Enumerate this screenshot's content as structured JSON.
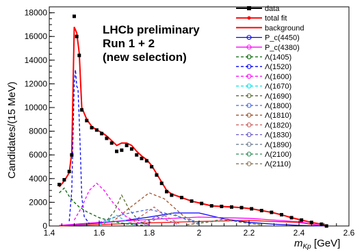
{
  "chart_data": {
    "type": "line",
    "title": "",
    "xlabel": "m_{Kp} [GeV]",
    "xlabel_main": "m",
    "xlabel_sub": "Kp",
    "xlabel_unit": "[GeV]",
    "ylabel": "Candidates/(15 MeV)",
    "xlim": [
      1.4,
      2.6
    ],
    "ylim": [
      0,
      18500
    ],
    "x_ticks": [
      1.4,
      1.6,
      1.8,
      2,
      2.2,
      2.4,
      2.6
    ],
    "x_tick_labels": [
      "1.4",
      "1.6",
      "1.8",
      "2",
      "2.2",
      "2.4",
      "2.6"
    ],
    "y_ticks": [
      0,
      2000,
      4000,
      6000,
      8000,
      10000,
      12000,
      14000,
      16000,
      18000
    ],
    "y_tick_labels": [
      "0",
      "2000",
      "4000",
      "6000",
      "8000",
      "10000",
      "12000",
      "14000",
      "16000",
      "18000"
    ],
    "annotations": [
      "LHCb preliminary",
      "Run 1 + 2",
      "(new selection)"
    ],
    "legend_position": "top-right",
    "series": [
      {
        "name": "data",
        "color": "#000000",
        "style": "data",
        "x": [
          1.44,
          1.46,
          1.48,
          1.49,
          1.5,
          1.51,
          1.52,
          1.53,
          1.55,
          1.57,
          1.59,
          1.61,
          1.63,
          1.65,
          1.67,
          1.69,
          1.71,
          1.73,
          1.75,
          1.77,
          1.79,
          1.81,
          1.83,
          1.85,
          1.87,
          1.89,
          1.93,
          1.97,
          2.01,
          2.05,
          2.09,
          2.13,
          2.17,
          2.21,
          2.25,
          2.29,
          2.33,
          2.37,
          2.41,
          2.45,
          2.49,
          2.51
        ],
        "y": [
          3500,
          3900,
          4600,
          6000,
          17700,
          16000,
          14400,
          9800,
          8900,
          8300,
          8100,
          7800,
          7400,
          7000,
          6300,
          6400,
          6800,
          6500,
          6000,
          5700,
          5500,
          5000,
          4300,
          3600,
          2900,
          2600,
          2400,
          2100,
          1900,
          1700,
          1650,
          1600,
          1550,
          1450,
          1300,
          1150,
          950,
          700,
          500,
          300,
          150,
          0
        ]
      },
      {
        "name": "total fit",
        "color": "#ff0000",
        "style": "line",
        "x": [
          1.44,
          1.46,
          1.48,
          1.49,
          1.5,
          1.51,
          1.52,
          1.53,
          1.55,
          1.57,
          1.59,
          1.61,
          1.63,
          1.65,
          1.67,
          1.69,
          1.71,
          1.73,
          1.75,
          1.77,
          1.79,
          1.81,
          1.83,
          1.85,
          1.87,
          1.89,
          1.93,
          1.97,
          2.01,
          2.05,
          2.09,
          2.13,
          2.17,
          2.21,
          2.25,
          2.29,
          2.33,
          2.37,
          2.41,
          2.45,
          2.49,
          2.51
        ],
        "y": [
          3300,
          3800,
          4500,
          6200,
          16800,
          16300,
          14600,
          10000,
          9000,
          8400,
          8100,
          7900,
          7600,
          7200,
          6800,
          7000,
          7000,
          6800,
          6300,
          5900,
          5600,
          5100,
          4400,
          3700,
          3000,
          2700,
          2400,
          2100,
          1900,
          1700,
          1650,
          1600,
          1550,
          1450,
          1300,
          1150,
          950,
          700,
          500,
          300,
          150,
          0
        ]
      },
      {
        "name": "background",
        "color": "#ff0000",
        "style": "line",
        "x": [
          1.44,
          1.6,
          1.8,
          2.0,
          2.2,
          2.4,
          2.5
        ],
        "y": [
          0,
          120,
          260,
          380,
          460,
          300,
          0
        ]
      },
      {
        "name": "P_c(4450)",
        "color": "#0000ff",
        "style": "line",
        "x": [
          1.44,
          1.6,
          1.7,
          1.8,
          1.9,
          2.0,
          2.1,
          2.2,
          2.3,
          2.4,
          2.5
        ],
        "y": [
          50,
          250,
          450,
          750,
          1100,
          1100,
          600,
          300,
          150,
          50,
          0
        ]
      },
      {
        "name": "P_c(4380)",
        "color": "#ff00ff",
        "style": "line",
        "x": [
          1.44,
          1.6,
          1.8,
          2.0,
          2.2,
          2.4,
          2.5
        ],
        "y": [
          50,
          300,
          550,
          750,
          650,
          350,
          0
        ]
      },
      {
        "name": "Λ(1405)",
        "color": "#006400",
        "style": "dashed",
        "x": [
          1.44,
          1.46,
          1.48,
          1.5,
          1.52,
          1.55,
          1.6,
          1.65,
          1.7,
          1.75,
          1.8
        ],
        "y": [
          2800,
          3200,
          2500,
          2000,
          1600,
          1200,
          700,
          400,
          200,
          100,
          0
        ]
      },
      {
        "name": "Λ(1520)",
        "color": "#0000ff",
        "style": "dashed",
        "x": [
          1.48,
          1.49,
          1.5,
          1.505,
          1.51,
          1.515,
          1.52,
          1.525,
          1.53,
          1.54,
          1.56
        ],
        "y": [
          400,
          3000,
          12000,
          13200,
          11800,
          11600,
          9000,
          6000,
          2500,
          800,
          200
        ]
      },
      {
        "name": "Λ(1600)",
        "color": "#ff00ff",
        "style": "dashed",
        "x": [
          1.5,
          1.53,
          1.56,
          1.59,
          1.62,
          1.65,
          1.7,
          1.75,
          1.8
        ],
        "y": [
          500,
          1600,
          3000,
          3600,
          3000,
          2100,
          900,
          300,
          100
        ]
      },
      {
        "name": "Λ(1670)",
        "color": "#00e5ee",
        "style": "dashed",
        "x": [
          1.6,
          1.64,
          1.67,
          1.7,
          1.74
        ],
        "y": [
          100,
          500,
          900,
          500,
          100
        ]
      },
      {
        "name": "Λ(1690)",
        "color": "#556b2f",
        "style": "dashed",
        "x": [
          1.62,
          1.66,
          1.69,
          1.72,
          1.76,
          1.8
        ],
        "y": [
          200,
          1200,
          2600,
          1400,
          400,
          100
        ]
      },
      {
        "name": "Λ(1800)",
        "color": "#4169e1",
        "style": "dashed",
        "x": [
          1.6,
          1.7,
          1.8,
          1.9,
          2.0
        ],
        "y": [
          300,
          1000,
          1400,
          900,
          300
        ]
      },
      {
        "name": "Λ(1810)",
        "color": "#a0522d",
        "style": "dashed",
        "x": [
          1.65,
          1.72,
          1.8,
          1.86,
          1.94,
          2.0
        ],
        "y": [
          300,
          1500,
          2800,
          2300,
          800,
          200
        ]
      },
      {
        "name": "Λ(1820)",
        "color": "#cd5c5c",
        "style": "dashed",
        "x": [
          1.72,
          1.78,
          1.82,
          1.86,
          1.92
        ],
        "y": [
          200,
          1000,
          1600,
          900,
          200
        ]
      },
      {
        "name": "Λ(1830)",
        "color": "#6a5acd",
        "style": "dashed",
        "x": [
          1.74,
          1.8,
          1.83,
          1.87,
          1.92
        ],
        "y": [
          100,
          500,
          800,
          500,
          100
        ]
      },
      {
        "name": "Λ(1890)",
        "color": "#708090",
        "style": "dashed",
        "x": [
          1.78,
          1.84,
          1.89,
          1.94,
          2.0
        ],
        "y": [
          100,
          700,
          1100,
          600,
          100
        ]
      },
      {
        "name": "Λ(2100)",
        "color": "#2e8b57",
        "style": "dashed",
        "x": [
          1.95,
          2.05,
          2.1,
          2.16,
          2.25
        ],
        "y": [
          100,
          400,
          600,
          350,
          80
        ]
      },
      {
        "name": "Λ(2110)",
        "color": "#8b7355",
        "style": "dashed",
        "x": [
          1.95,
          2.05,
          2.11,
          2.17,
          2.25
        ],
        "y": [
          100,
          350,
          500,
          300,
          80
        ]
      }
    ]
  }
}
